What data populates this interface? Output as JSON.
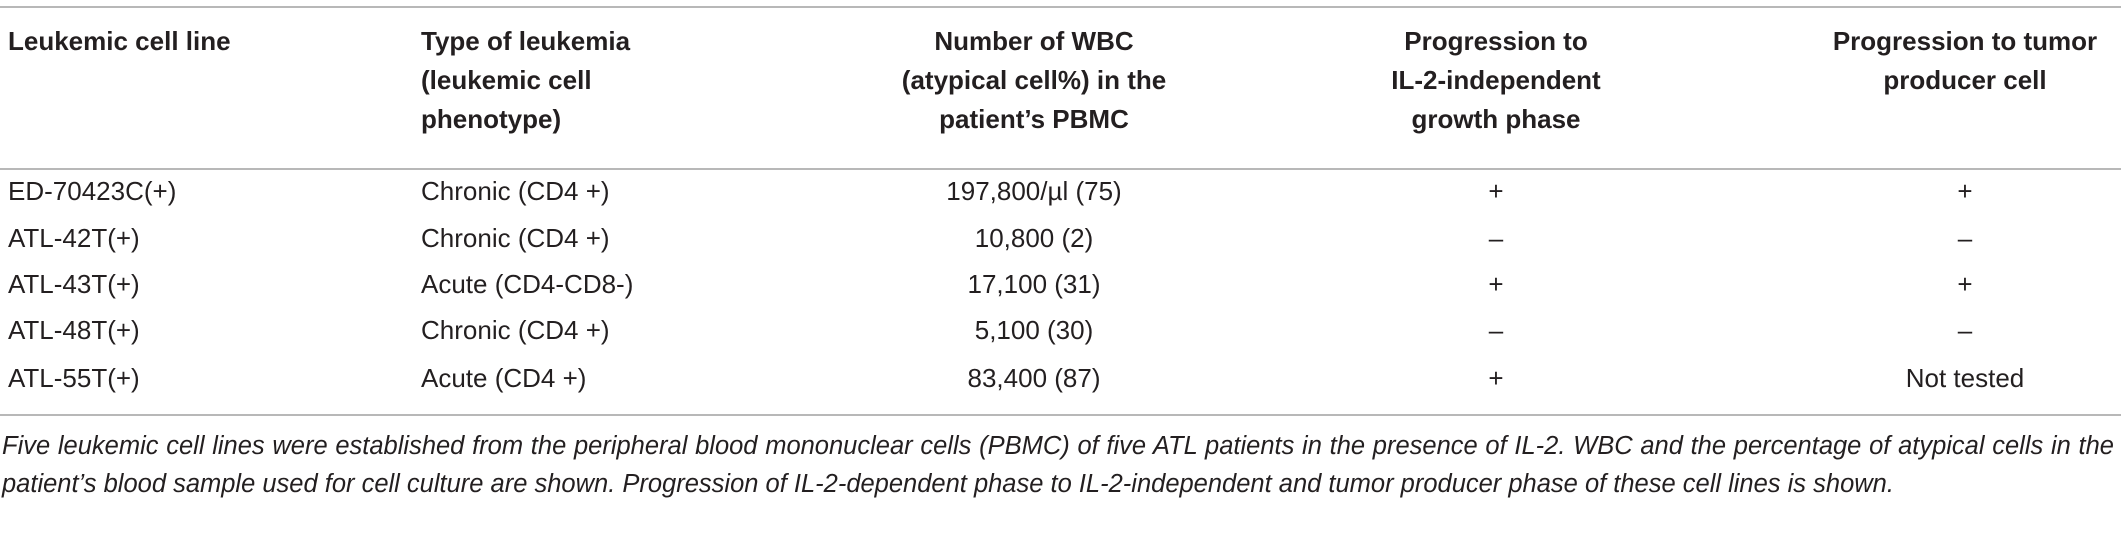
{
  "table": {
    "headers": [
      [
        "Leukemic cell line"
      ],
      [
        "Type of leukemia",
        "(leukemic cell",
        "phenotype)"
      ],
      [
        "Number of WBC",
        "(atypical cell%) in the",
        "patient’s PBMC"
      ],
      [
        "Progression to",
        "IL-2-independent",
        "growth phase"
      ],
      [
        "Progression to tumor",
        "producer cell"
      ]
    ],
    "rows": [
      [
        "ED-70423C(+)",
        "Chronic (CD4 +)",
        "197,800/µl (75)",
        "+",
        "+"
      ],
      [
        "ATL-42T(+)",
        "Chronic (CD4 +)",
        "10,800 (2)",
        "–",
        "–"
      ],
      [
        "ATL-43T(+)",
        "Acute (CD4-CD8-)",
        "17,100 (31)",
        "+",
        "+"
      ],
      [
        "ATL-48T(+)",
        "Chronic (CD4 +)",
        "5,100 (30)",
        "–",
        "–"
      ],
      [
        "ATL-55T(+)",
        "Acute (CD4 +)",
        "83,400 (87)",
        "+",
        "Not tested"
      ]
    ],
    "caption": "Five leukemic cell lines were established from the peripheral blood mononuclear cells (PBMC) of five ATL patients in the presence of IL-2. WBC and the percentage of atypical cells in the patient’s blood sample used for cell culture are shown. Progression of IL-2-dependent phase to IL-2-independent and tumor producer phase of these cell lines is shown."
  }
}
